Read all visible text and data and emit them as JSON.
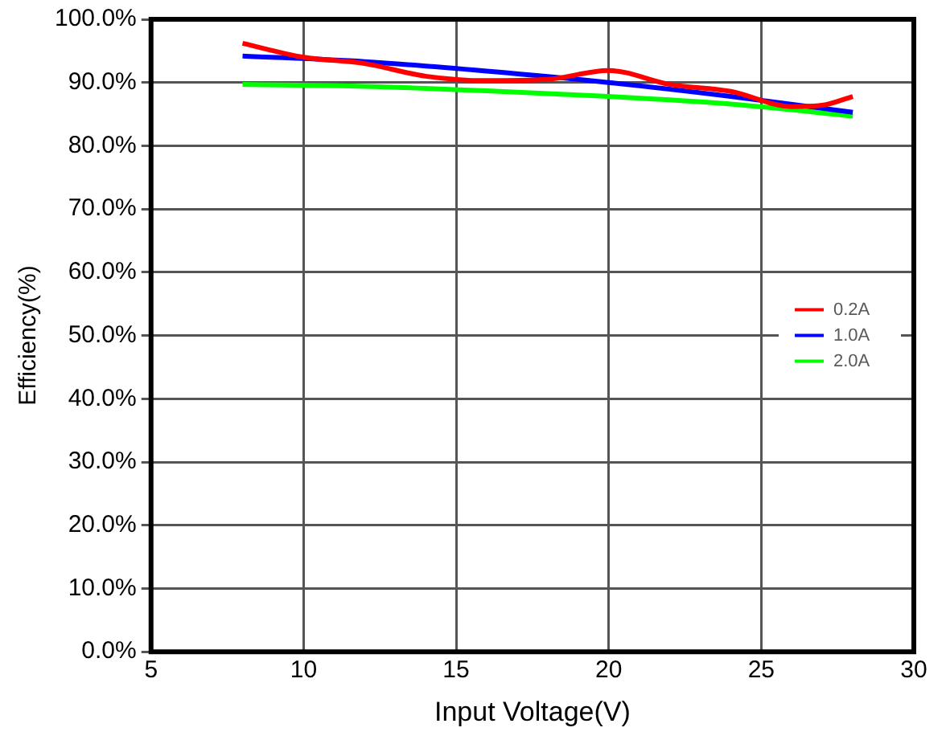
{
  "chart_data": {
    "type": "line",
    "xlabel": "Input Voltage(V)",
    "ylabel": "Efficiency(%)",
    "xlim": [
      5,
      30
    ],
    "xticks": [
      5,
      10,
      15,
      20,
      25,
      30
    ],
    "ylim": [
      0,
      100
    ],
    "yticks": [
      {
        "value": 0,
        "label": "0.0%"
      },
      {
        "value": 10,
        "label": "10.0%"
      },
      {
        "value": 20,
        "label": "20.0%"
      },
      {
        "value": 30,
        "label": "30.0%"
      },
      {
        "value": 40,
        "label": "40.0%"
      },
      {
        "value": 50,
        "label": "50.0%"
      },
      {
        "value": 60,
        "label": "60.0%"
      },
      {
        "value": 70,
        "label": "70.0%"
      },
      {
        "value": 80,
        "label": "80.0%"
      },
      {
        "value": 90,
        "label": "90.0%"
      },
      {
        "value": 100,
        "label": "100.0%"
      }
    ],
    "grid": true,
    "legend": "right",
    "marker": "none",
    "line_style": "solid",
    "series": [
      {
        "name": "0.2A",
        "color": "#ff0000",
        "x": [
          8,
          10,
          12,
          14,
          16,
          18,
          20,
          22,
          24,
          26,
          27,
          28
        ],
        "values": [
          96.2,
          94,
          93,
          91,
          90.3,
          90.5,
          91.9,
          89.7,
          88.6,
          86.2,
          86.4,
          87.8
        ]
      },
      {
        "name": "1.0A",
        "color": "#0000ff",
        "x": [
          8,
          12,
          16,
          20,
          24,
          28
        ],
        "values": [
          94.2,
          93.3,
          91.8,
          90,
          87.8,
          85.3
        ]
      },
      {
        "name": "2.0A",
        "color": "#00ff00",
        "x": [
          8,
          12,
          16,
          20,
          24,
          28
        ],
        "values": [
          89.7,
          89.4,
          88.7,
          87.8,
          86.6,
          84.7
        ]
      }
    ]
  }
}
